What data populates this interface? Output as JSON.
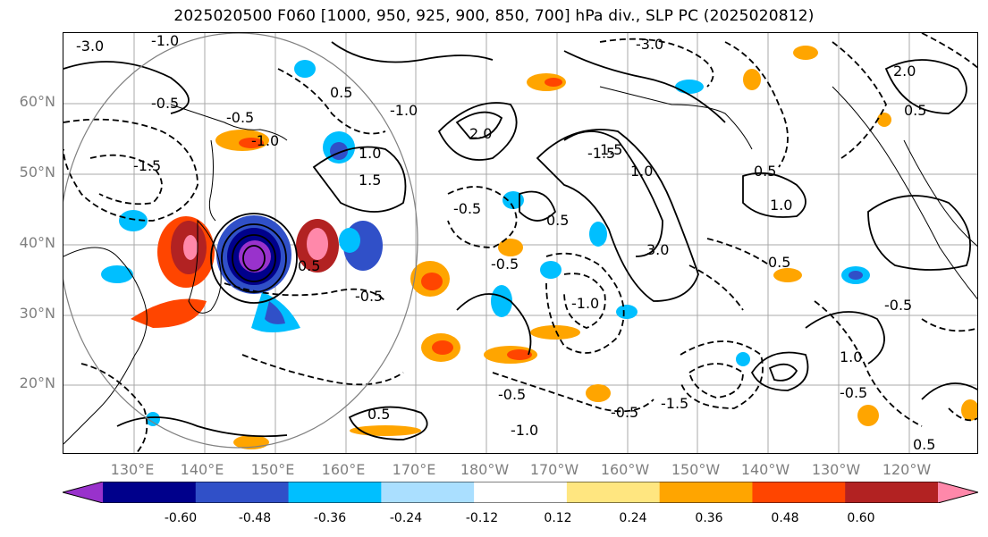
{
  "title": "2025020500 F060 [1000, 950, 925, 900, 850, 700] hPa div., SLP PC (2025020812)",
  "map": {
    "lat_labels": [
      "60°N",
      "50°N",
      "40°N",
      "30°N",
      "20°N"
    ],
    "lon_labels": [
      "130°E",
      "140°E",
      "150°E",
      "160°E",
      "170°E",
      "180°W",
      "170°W",
      "160°W",
      "150°W",
      "140°W",
      "130°W",
      "120°W"
    ],
    "contour_labels": [
      "-3.0",
      "-1.0",
      "-0.5",
      "-0.5",
      "-1.5",
      "-1.0",
      "0.5",
      "1.0",
      "1.5",
      "2.0",
      "-0.5",
      "-1.0",
      "-0.5",
      "0.5",
      "-1.5",
      "1.0",
      "3.0",
      "1.5",
      "0.5",
      "-0.5",
      "-0.5",
      "-0.5",
      "0.5",
      "-1.0",
      "-1.5",
      "-1.0",
      "0.5",
      "1.0",
      "0.5",
      "-0.5",
      "-0.5",
      "1.0",
      "0.5",
      "2.0",
      "-3.0",
      "0.5"
    ]
  },
  "colorbar": {
    "colors": [
      "#9932cc",
      "#00008b",
      "#3050c8",
      "#00bfff",
      "#aadfff",
      "#ffffff",
      "#ffe680",
      "#ffa500",
      "#ff4500",
      "#b22222",
      "#ff88aa"
    ],
    "tick_labels": [
      "-0.60",
      "-0.48",
      "-0.36",
      "-0.24",
      "-0.12",
      "0.12",
      "0.24",
      "0.36",
      "0.48",
      "0.60"
    ]
  }
}
